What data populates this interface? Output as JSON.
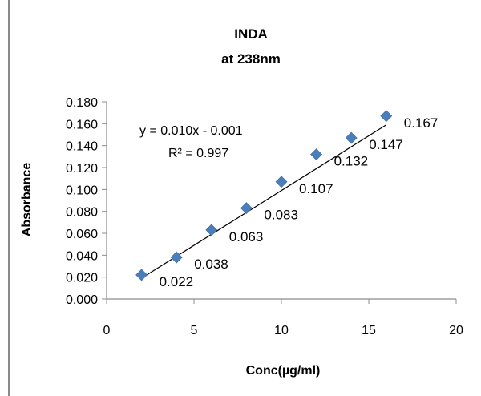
{
  "chart_data": {
    "type": "scatter",
    "title_lines": [
      "INDA",
      "at 238nm"
    ],
    "xlabel": "Conc(µg/ml)",
    "ylabel": "Absorbance",
    "xlim": [
      0,
      20
    ],
    "ylim": [
      0,
      0.18
    ],
    "x_ticks": [
      "0",
      "5",
      "10",
      "15",
      "20"
    ],
    "y_ticks": [
      "0.000",
      "0.020",
      "0.040",
      "0.060",
      "0.080",
      "0.100",
      "0.120",
      "0.140",
      "0.160",
      "0.180"
    ],
    "series": [
      {
        "x": [
          2,
          4,
          6,
          8,
          10,
          12,
          14,
          16
        ],
        "values": [
          0.022,
          0.038,
          0.063,
          0.083,
          0.107,
          0.132,
          0.147,
          0.167
        ],
        "labels": [
          "0.022",
          "0.038",
          "0.063",
          "0.083",
          "0.107",
          "0.132",
          "0.147",
          "0.167"
        ],
        "marker": "diamond",
        "color": "#4a7ebb"
      }
    ],
    "trendline": {
      "type": "linear",
      "slope": 0.01,
      "intercept": -0.001,
      "x_range": [
        2,
        16
      ],
      "color": "#000000",
      "equation": "y = 0.010x - 0.001",
      "r_squared": "R² = 0.997"
    },
    "grid": false,
    "legend": "none"
  }
}
